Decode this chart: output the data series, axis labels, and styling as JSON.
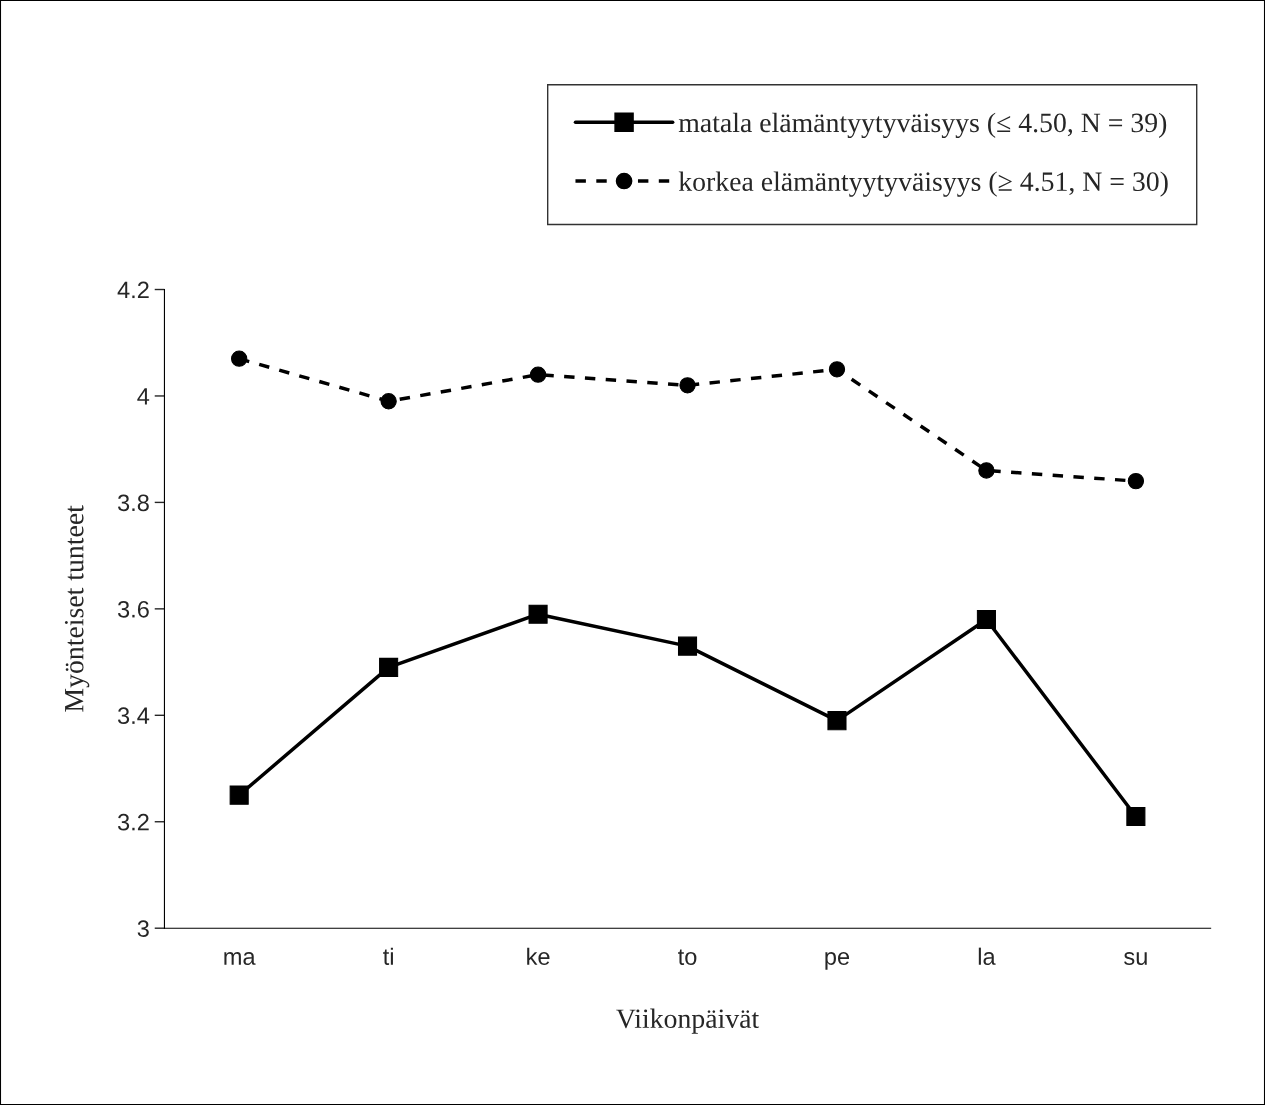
{
  "chart_data": {
    "type": "line",
    "xlabel": "Viikonpäivät",
    "ylabel": "Myönteiset tunteet",
    "categories": [
      "ma",
      "ti",
      "ke",
      "to",
      "pe",
      "la",
      "su"
    ],
    "series": [
      {
        "name": "matala elämäntyytyväisyys (≤ 4.50, N = 39)",
        "color": "#000000",
        "marker": "square",
        "line_style": "solid",
        "values": [
          3.25,
          3.49,
          3.59,
          3.53,
          3.39,
          3.58,
          3.21
        ]
      },
      {
        "name": "korkea elämäntyytyväisyys (≥ 4.51, N = 30)",
        "color": "#000000",
        "marker": "circle",
        "line_style": "dashed",
        "values": [
          4.07,
          3.99,
          4.04,
          4.02,
          4.05,
          3.86,
          3.84
        ]
      }
    ],
    "ylim": [
      3,
      4.2
    ],
    "yticks": [
      3,
      3.2,
      3.4,
      3.6,
      3.8,
      4,
      4.2
    ],
    "grid": false,
    "legend": "top right"
  }
}
